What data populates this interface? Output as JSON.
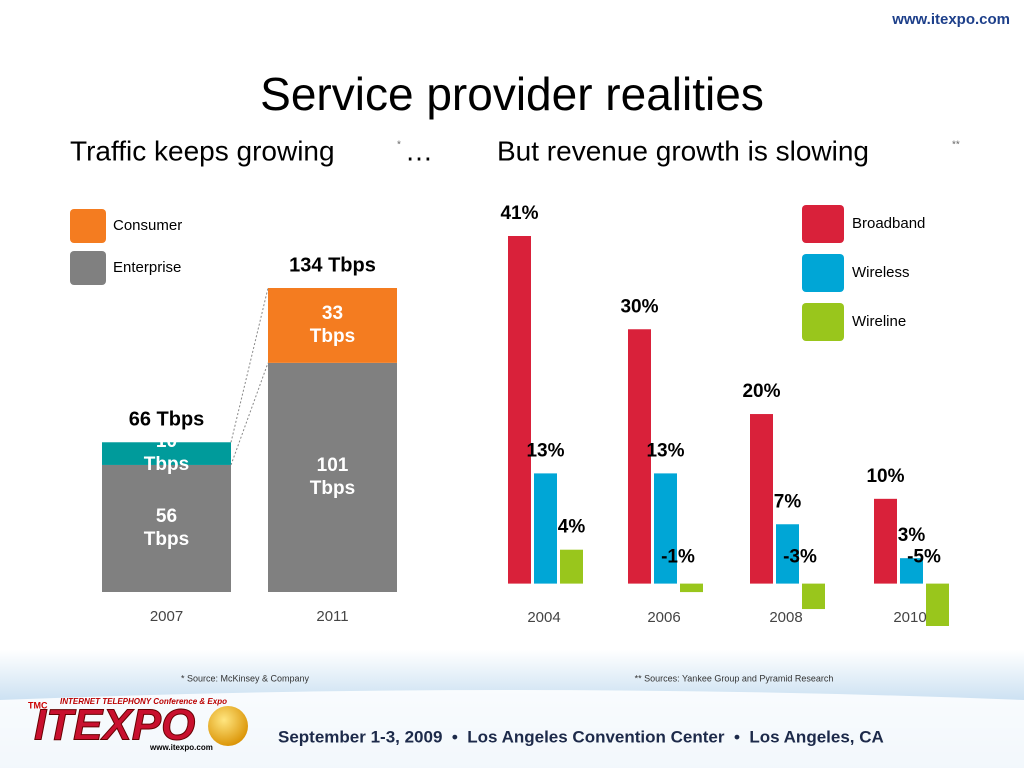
{
  "slide": {
    "title": "Service provider realities",
    "website": "www.itexpo.com",
    "banner": "September 1-3, 2009  •  Los Angeles Convention Center  •  Los Angeles, CA",
    "logo": "ITEXPO",
    "logo_tagline": "INTERNET TELEPHONY Conference & Expo",
    "logo_badge": "TMC",
    "logo_url": "www.itexpo.com"
  },
  "chart_data": [
    {
      "type": "stacked_bar",
      "title": "Traffic keeps growing",
      "title_note": "*",
      "title_suffix": "…",
      "source": "* Source: McKinsey & Company",
      "categories": [
        "2007",
        "2011"
      ],
      "series": [
        {
          "name": "Consumer",
          "color": "#f47c20",
          "colors": [
            "#009b9b",
            "#f47c20"
          ],
          "values": [
            10,
            33
          ],
          "value_labels": [
            "10 Tbps",
            "33 Tbps"
          ]
        },
        {
          "name": "Enterprise",
          "color": "#808080",
          "values": [
            56,
            101
          ],
          "value_labels": [
            "56 Tbps",
            "101 Tbps"
          ]
        }
      ],
      "total_labels": [
        "66 Tbps",
        "134 Tbps"
      ],
      "ylim": [
        0,
        134
      ],
      "legend": "top-left"
    },
    {
      "type": "grouped_bar",
      "title": "But revenue growth is slowing",
      "title_note": "**",
      "source": "** Sources: Yankee Group and Pyramid Research",
      "categories": [
        "2004",
        "2006",
        "2008",
        "2010"
      ],
      "series": [
        {
          "name": "Broadband",
          "color": "#d9213a",
          "values": [
            41,
            30,
            20,
            10
          ],
          "value_labels": [
            "41%",
            "30%",
            "20%",
            "10%"
          ]
        },
        {
          "name": "Wireless",
          "color": "#00a6d6",
          "values": [
            13,
            13,
            7,
            3
          ],
          "value_labels": [
            "13%",
            "13%",
            "7%",
            "3%"
          ]
        },
        {
          "name": "Wireline",
          "color": "#99c61c",
          "values": [
            4,
            -1,
            -3,
            -5
          ],
          "value_labels": [
            "4%",
            "-1%",
            "-3%",
            "-5%"
          ]
        }
      ],
      "ylim": [
        -5,
        41
      ],
      "legend": "top-right"
    }
  ]
}
